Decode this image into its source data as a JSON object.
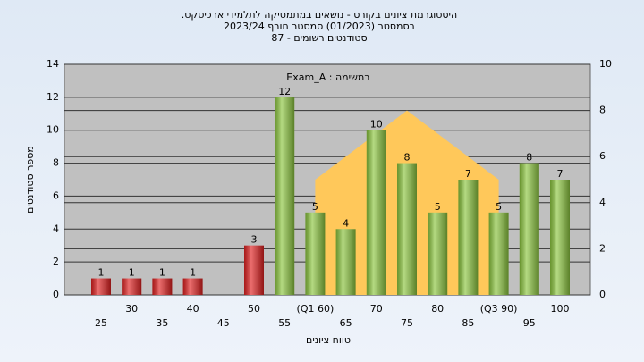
{
  "chart_data": {
    "type": "bar",
    "title": [
      "היסטוגרמת ציונים בקורס - נושאים במתמטיקה לתלמידי ארכיטקט.",
      "בסמסטר  (01/2023)  סמסטר חורף 2023/24",
      "סטודנטים רשומים - 87"
    ],
    "annotation": "במשימה : Exam_A",
    "x_label": "טווח ציונים",
    "y_label": "מספר סטודנטים",
    "categories": [
      "25",
      "30",
      "35",
      "40",
      "45",
      "50",
      "55",
      "(Q1 60)",
      "65",
      "70",
      "75",
      "80",
      "85",
      "(Q3 90)",
      "95",
      "100"
    ],
    "values": [
      1,
      1,
      1,
      1,
      null,
      3,
      12,
      5,
      4,
      10,
      8,
      5,
      7,
      5,
      8,
      7
    ],
    "colors": [
      "#e02020",
      "#e02020",
      "#e02020",
      "#e02020",
      "#e02020",
      "#e02020",
      "#8cc63f",
      "#8cc63f",
      "#8cc63f",
      "#8cc63f",
      "#8cc63f",
      "#8cc63f",
      "#8cc63f",
      "#8cc63f",
      "#8cc63f",
      "#8cc63f"
    ],
    "area": {
      "axis": "y2",
      "color": "#ffc85a",
      "values": [
        null,
        null,
        null,
        null,
        null,
        null,
        null,
        5,
        null,
        null,
        8,
        null,
        null,
        5,
        null,
        null
      ]
    },
    "ylim": [
      0,
      14
    ],
    "yticks": [
      0,
      2,
      4,
      6,
      8,
      10,
      12,
      14
    ],
    "y2lim": [
      0,
      10
    ],
    "y2ticks": [
      0,
      2,
      4,
      6,
      8,
      10
    ],
    "grid": true
  }
}
